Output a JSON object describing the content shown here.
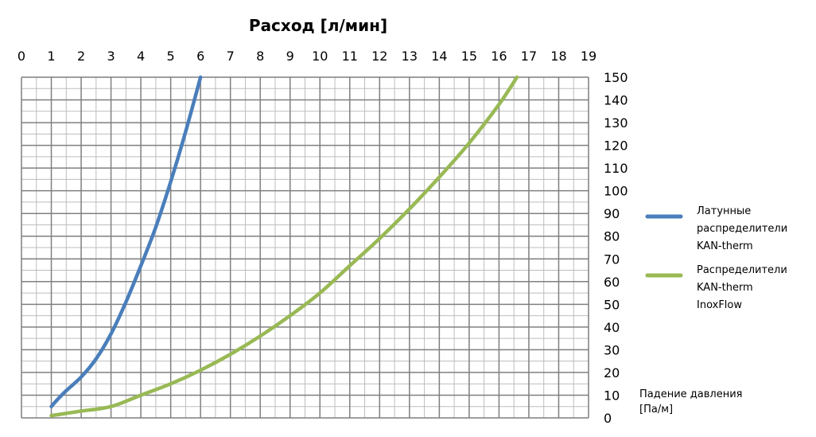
{
  "chart_data": {
    "type": "line",
    "title": "Расход [л/мин]",
    "axis_note_line1": "Падение давления",
    "axis_note_line2": "[Па/м]",
    "x_ticks": [
      "0",
      "1",
      "2",
      "3",
      "4",
      "5",
      "6",
      "7",
      "8",
      "9",
      "10",
      "11",
      "12",
      "13",
      "14",
      "15",
      "16",
      "17",
      "18",
      "19"
    ],
    "y_ticks": [
      "0",
      "10",
      "20",
      "30",
      "40",
      "50",
      "60",
      "70",
      "80",
      "90",
      "100",
      "110",
      "120",
      "130",
      "140",
      "150"
    ],
    "xlim": [
      0,
      19
    ],
    "ylim": [
      0,
      150
    ],
    "x_axis_position": "top",
    "y_axis_position": "right",
    "grid": true,
    "legend_position": "right",
    "series": [
      {
        "name_lines": [
          "Латунные",
          "распределители",
          "KAN-therm"
        ],
        "color": "#4a7ebb",
        "x": [
          1.0,
          1.2,
          1.5,
          2.0,
          2.5,
          3.0,
          3.5,
          4.0,
          4.5,
          5.0,
          5.5,
          6.0
        ],
        "y": [
          5,
          8,
          12,
          18,
          26,
          37,
          51,
          67,
          84,
          104,
          126,
          150
        ]
      },
      {
        "name_lines": [
          "Распределители",
          "KAN-therm",
          "InoxFlow"
        ],
        "color": "#98b954",
        "x": [
          1.0,
          1.5,
          2.0,
          3.0,
          4.0,
          5.0,
          6.0,
          7.0,
          8.0,
          9.0,
          10.0,
          11.0,
          12.0,
          13.0,
          14.0,
          15.0,
          16.0,
          16.6
        ],
        "y": [
          1,
          2,
          3,
          5,
          10,
          15,
          21,
          28,
          36,
          45,
          55,
          67,
          79,
          92,
          106,
          121,
          138,
          150
        ]
      }
    ]
  }
}
